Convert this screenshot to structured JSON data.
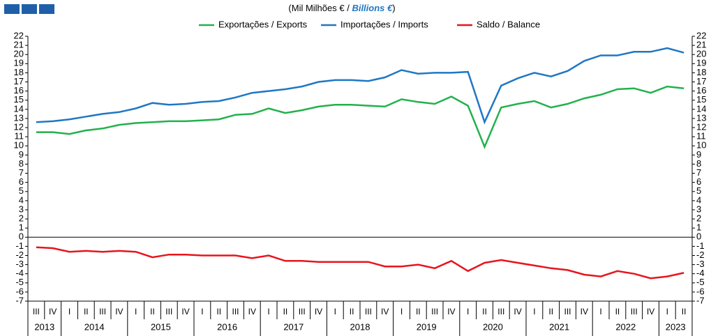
{
  "chart_data": {
    "type": "line",
    "title_parts": [
      "(Mil Milhões  € / ",
      "Billions €",
      ")"
    ],
    "categories": [
      "III",
      "IV",
      "I",
      "II",
      "III",
      "IV",
      "I",
      "II",
      "III",
      "IV",
      "I",
      "II",
      "III",
      "IV",
      "I",
      "II",
      "III",
      "IV",
      "I",
      "II",
      "III",
      "IV",
      "I",
      "II",
      "III",
      "IV",
      "I",
      "II",
      "III",
      "IV",
      "I",
      "II",
      "III",
      "IV",
      "I",
      "II",
      "III",
      "IV",
      "I",
      "II"
    ],
    "years": [
      "2013",
      "2014",
      "2015",
      "2016",
      "2017",
      "2018",
      "2019",
      "2020",
      "2021",
      "2022",
      "2023"
    ],
    "series": [
      {
        "name": "Exportações / Exports",
        "color": "#22b14c",
        "values": [
          11.5,
          11.5,
          11.3,
          11.7,
          11.9,
          12.3,
          12.5,
          12.6,
          12.7,
          12.7,
          12.8,
          12.9,
          13.4,
          13.5,
          14.1,
          13.6,
          13.9,
          14.3,
          14.5,
          14.5,
          14.4,
          14.3,
          15.1,
          14.8,
          14.6,
          15.4,
          14.4,
          9.9,
          14.2,
          14.6,
          14.9,
          14.2,
          14.6,
          15.2,
          15.6,
          16.2,
          16.3,
          15.8,
          16.5,
          16.3
        ]
      },
      {
        "name": "Importações / Imports",
        "color": "#1f77c4",
        "values": [
          12.6,
          12.7,
          12.9,
          13.2,
          13.5,
          13.7,
          14.1,
          14.7,
          14.5,
          14.6,
          14.8,
          14.9,
          15.3,
          15.8,
          16.0,
          16.2,
          16.5,
          17.0,
          17.2,
          17.2,
          17.1,
          17.5,
          18.3,
          17.9,
          18.0,
          18.0,
          18.1,
          12.6,
          16.6,
          17.4,
          18.0,
          17.6,
          18.2,
          19.3,
          19.9,
          19.9,
          20.3,
          20.3,
          20.7,
          20.2
        ]
      },
      {
        "name": "Saldo / Balance",
        "color": "#e8141c",
        "values": [
          -1.1,
          -1.2,
          -1.6,
          -1.5,
          -1.6,
          -1.5,
          -1.6,
          -2.2,
          -1.9,
          -1.9,
          -2.0,
          -2.0,
          -2.0,
          -2.3,
          -2.0,
          -2.6,
          -2.6,
          -2.7,
          -2.7,
          -2.7,
          -2.7,
          -3.2,
          -3.2,
          -3.0,
          -3.4,
          -2.6,
          -3.7,
          -2.8,
          -2.5,
          -2.8,
          -3.1,
          -3.4,
          -3.6,
          -4.1,
          -4.3,
          -3.7,
          -4.0,
          -4.5,
          -4.3,
          -3.9
        ]
      }
    ],
    "ylim": [
      -7,
      22
    ],
    "yticks": [
      -7,
      -6,
      -5,
      -4,
      -3,
      -2,
      -1,
      0,
      1,
      2,
      3,
      4,
      5,
      6,
      7,
      8,
      9,
      10,
      11,
      12,
      13,
      14,
      15,
      16,
      17,
      18,
      19,
      20,
      21,
      22
    ]
  }
}
